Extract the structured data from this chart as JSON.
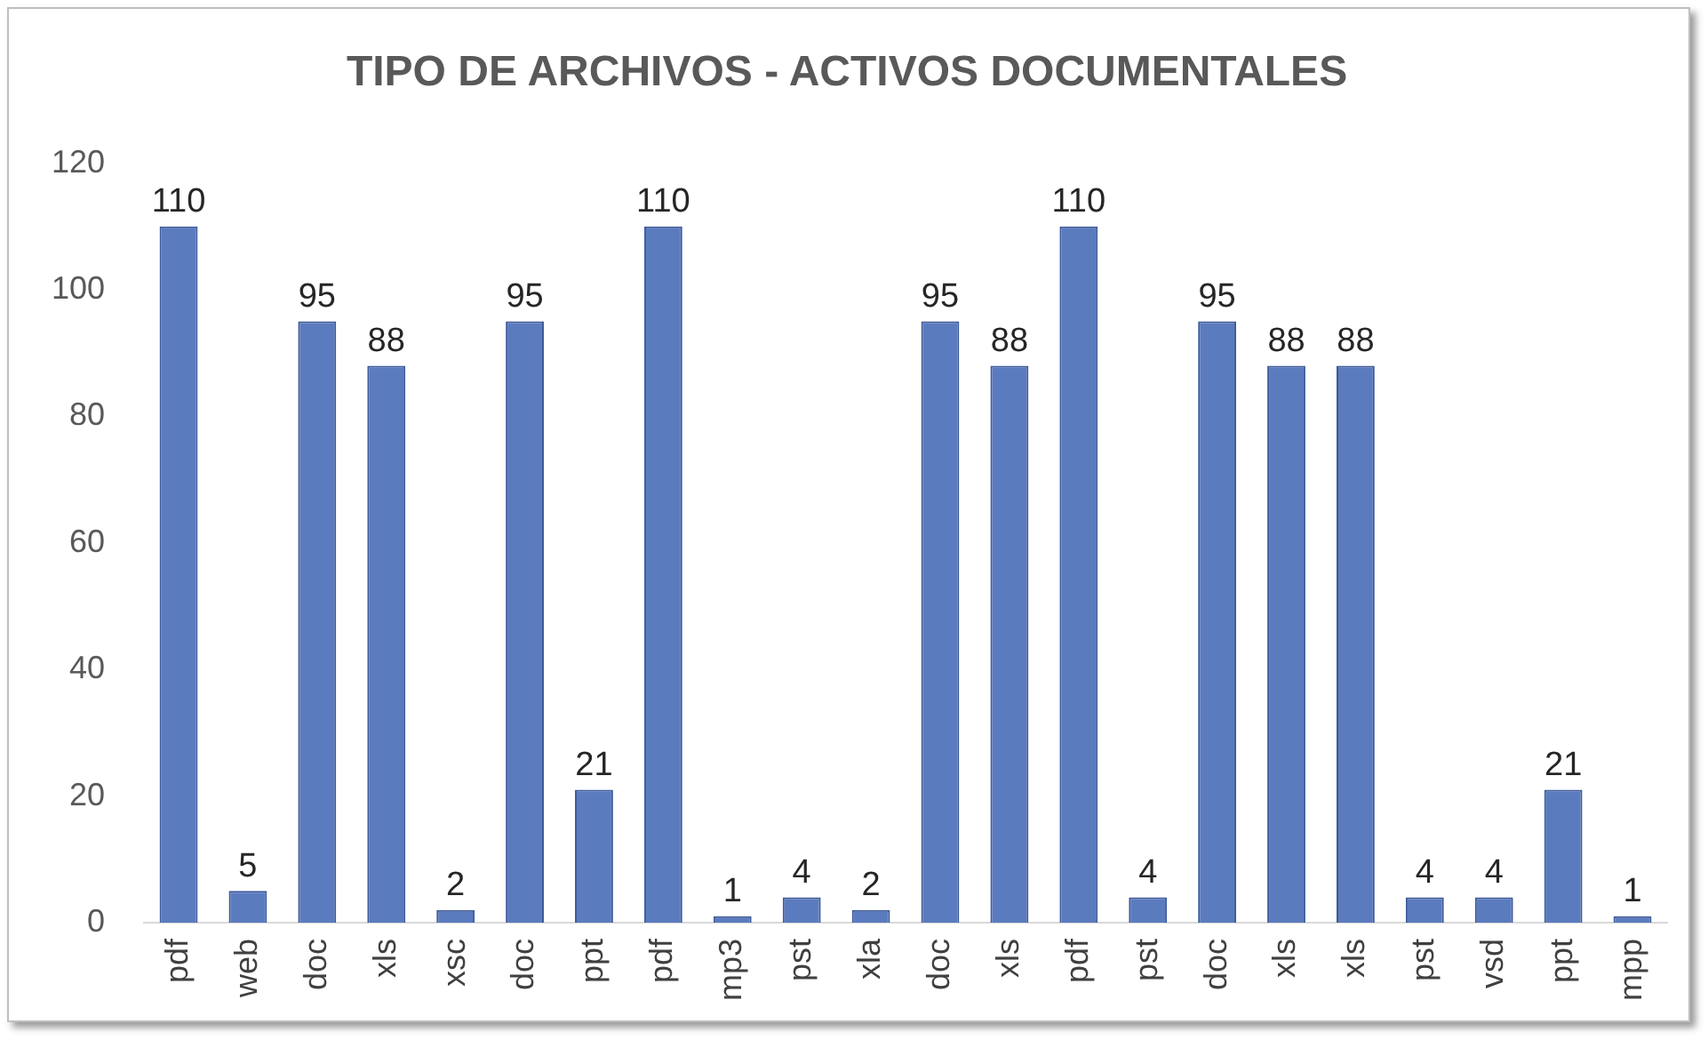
{
  "chart_data": {
    "type": "bar",
    "title": "TIPO DE ARCHIVOS - ACTIVOS DOCUMENTALES",
    "categories": [
      "pdf",
      "web",
      "doc",
      "xls",
      "xsc",
      "doc",
      "ppt",
      "pdf",
      "mp3",
      "pst",
      "xla",
      "doc",
      "xls",
      "pdf",
      "pst",
      "doc",
      "xls",
      "xls",
      "pst",
      "vsd",
      "ppt",
      "mpp"
    ],
    "values": [
      110,
      5,
      95,
      88,
      2,
      95,
      21,
      110,
      1,
      4,
      2,
      95,
      88,
      110,
      4,
      95,
      88,
      88,
      4,
      4,
      21,
      1
    ],
    "color": "#5b7bbf",
    "ylim": [
      0,
      120
    ],
    "yticks": [
      0,
      20,
      40,
      60,
      80,
      100,
      120
    ],
    "grid": false,
    "data_labels": true
  }
}
